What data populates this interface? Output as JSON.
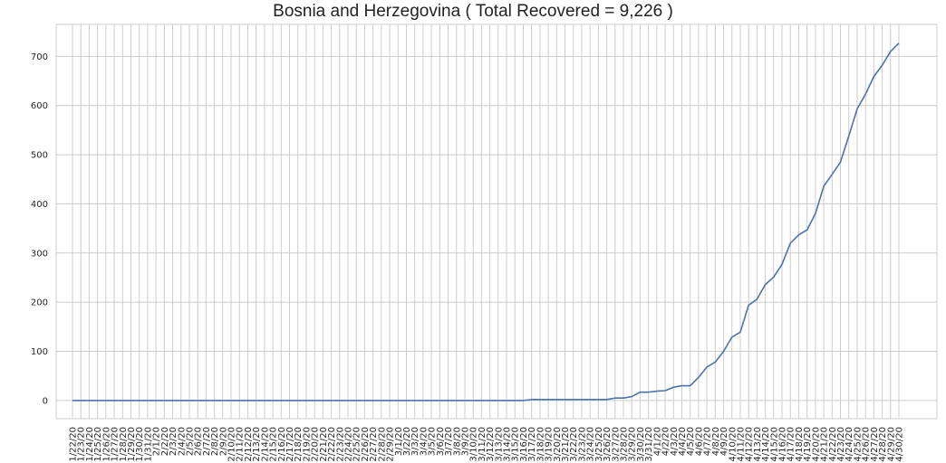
{
  "chart_data": {
    "type": "line",
    "title": "Bosnia and Herzegovina ( Total Recovered = 9,226 )",
    "xlabel": "",
    "ylabel": "",
    "ylim": [
      -37,
      765
    ],
    "grid": true,
    "line_color": "#4c72b0",
    "grid_color": "#cccccc",
    "yticks": [
      0,
      100,
      200,
      300,
      400,
      500,
      600,
      700
    ],
    "x": [
      "1/22/20",
      "1/23/20",
      "1/24/20",
      "1/25/20",
      "1/26/20",
      "1/27/20",
      "1/28/20",
      "1/29/20",
      "1/30/20",
      "1/31/20",
      "2/1/20",
      "2/2/20",
      "2/3/20",
      "2/4/20",
      "2/5/20",
      "2/6/20",
      "2/7/20",
      "2/8/20",
      "2/9/20",
      "2/10/20",
      "2/11/20",
      "2/12/20",
      "2/13/20",
      "2/14/20",
      "2/15/20",
      "2/16/20",
      "2/17/20",
      "2/18/20",
      "2/19/20",
      "2/20/20",
      "2/21/20",
      "2/22/20",
      "2/23/20",
      "2/24/20",
      "2/25/20",
      "2/26/20",
      "2/27/20",
      "2/28/20",
      "2/29/20",
      "3/1/20",
      "3/2/20",
      "3/3/20",
      "3/4/20",
      "3/5/20",
      "3/6/20",
      "3/7/20",
      "3/8/20",
      "3/9/20",
      "3/10/20",
      "3/11/20",
      "3/12/20",
      "3/13/20",
      "3/14/20",
      "3/15/20",
      "3/16/20",
      "3/17/20",
      "3/18/20",
      "3/19/20",
      "3/20/20",
      "3/21/20",
      "3/22/20",
      "3/23/20",
      "3/24/20",
      "3/25/20",
      "3/26/20",
      "3/27/20",
      "3/28/20",
      "3/29/20",
      "3/30/20",
      "3/31/20",
      "4/1/20",
      "4/2/20",
      "4/3/20",
      "4/4/20",
      "4/5/20",
      "4/6/20",
      "4/7/20",
      "4/8/20",
      "4/9/20",
      "4/10/20",
      "4/11/20",
      "4/12/20",
      "4/13/20",
      "4/14/20",
      "4/15/20",
      "4/16/20",
      "4/17/20",
      "4/18/20",
      "4/19/20",
      "4/20/20",
      "4/21/20",
      "4/22/20",
      "4/23/20",
      "4/24/20",
      "4/25/20",
      "4/26/20",
      "4/27/20",
      "4/28/20",
      "4/29/20",
      "4/30/20"
    ],
    "series": [
      {
        "name": "",
        "values": [
          0,
          0,
          0,
          0,
          0,
          0,
          0,
          0,
          0,
          0,
          0,
          0,
          0,
          0,
          0,
          0,
          0,
          0,
          0,
          0,
          0,
          0,
          0,
          0,
          0,
          0,
          0,
          0,
          0,
          0,
          0,
          0,
          0,
          0,
          0,
          0,
          0,
          0,
          0,
          0,
          0,
          0,
          0,
          0,
          0,
          0,
          0,
          0,
          0,
          0,
          0,
          0,
          0,
          0,
          0,
          2,
          2,
          2,
          2,
          2,
          2,
          2,
          2,
          2,
          2,
          5,
          5,
          8,
          17,
          17,
          19,
          20,
          27,
          30,
          30,
          47,
          68,
          78,
          100,
          129,
          139,
          194,
          206,
          236,
          251,
          277,
          320,
          337,
          347,
          380,
          436,
          460,
          485,
          538,
          593,
          623,
          659,
          682,
          710,
          727
        ]
      }
    ]
  }
}
